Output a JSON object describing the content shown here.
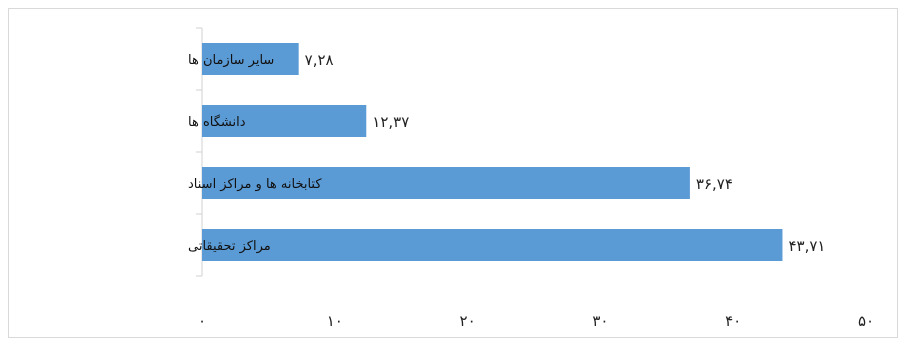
{
  "chart_data": {
    "type": "bar",
    "orientation": "horizontal",
    "categories": [
      "مراکز تحقیقاتی",
      "کتابخانه ها و مراکز اسناد",
      "دانشگاه ها",
      "سایر سازمان ها"
    ],
    "values": [
      43.71,
      36.74,
      12.37,
      7.28
    ],
    "value_labels": [
      "۴۳,۷۱",
      "۳۶,۷۴",
      "۱۲,۳۷",
      "۷,۲۸"
    ],
    "xlim": [
      0,
      50
    ],
    "x_ticks": [
      0,
      10,
      20,
      30,
      40,
      50
    ],
    "x_tick_labels": [
      "۰",
      "۱۰",
      "۲۰",
      "۳۰",
      "۴۰",
      "۵۰"
    ],
    "bar_color": "#5b9bd5",
    "grid": false
  }
}
